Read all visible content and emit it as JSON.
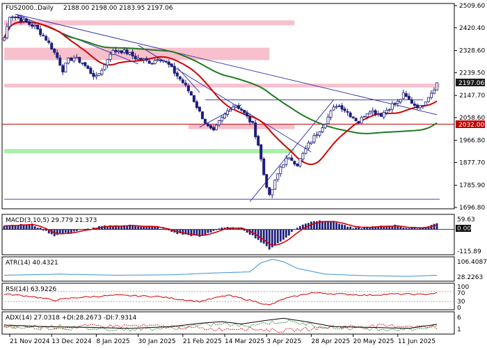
{
  "main": {
    "symbol_label": "FUS2000..Daily",
    "ohlc_text": "2188.00 2198.00 2183.95 2197.06",
    "price_ticks": [
      "2509.60",
      "2420.40",
      "2328.60",
      "2239.50",
      "2147.70",
      "2058.60",
      "1966.80",
      "1877.70",
      "1785.90",
      "1696.80"
    ],
    "current_price": "2197.06",
    "level_label": "2032.00",
    "colors": {
      "up": "#1f1f7a",
      "down": "#1f1f7a",
      "ma_fast": "#d40000",
      "ma_slow": "#1e7a1e",
      "zone_pink": "#f8c0cc",
      "zone_green": "#a8f0a8",
      "trend": "#2a2aa8",
      "level": "#c00000",
      "price_box": "#1a1a1a"
    }
  },
  "indicators": {
    "macd": {
      "label": "MACD(3,10,5) 29.779 21.373",
      "ticks": [
        "59.63",
        "0.00",
        "-115.89"
      ]
    },
    "atr": {
      "label": "ATR(14) 40.4321",
      "ticks": [
        "106.4087",
        "28.2263"
      ]
    },
    "rsi": {
      "label": "RSI(14) 63.9226",
      "ticks": [
        "100",
        "70",
        "30",
        "0"
      ]
    },
    "adx": {
      "label": "ADX(14) 27.0318 +DI:28.2673 -DI:7.9314",
      "ticks": [
        "6",
        "1"
      ]
    }
  },
  "x_axis": {
    "labels": [
      "21 Nov 2024",
      "13 Dec 2024",
      "8 Jan 2025",
      "30 Jan 2025",
      "21 Feb 2025",
      "14 Mar 2025",
      "3 Apr 2025",
      "28 Apr 2025",
      "20 May 2025",
      "11 Jun 2025"
    ]
  },
  "chart_data": {
    "type": "candlestick",
    "y_range": [
      1696.8,
      2509.6
    ],
    "closes_keypoints": [
      [
        0,
        2380
      ],
      [
        2,
        2470
      ],
      [
        5,
        2460
      ],
      [
        8,
        2440
      ],
      [
        11,
        2425
      ],
      [
        13,
        2400
      ],
      [
        15,
        2375
      ],
      [
        17,
        2340
      ],
      [
        19,
        2300
      ],
      [
        21,
        2250
      ],
      [
        23,
        2290
      ],
      [
        25,
        2300
      ],
      [
        28,
        2280
      ],
      [
        31,
        2240
      ],
      [
        33,
        2220
      ],
      [
        36,
        2270
      ],
      [
        38,
        2320
      ],
      [
        41,
        2330
      ],
      [
        44,
        2320
      ],
      [
        47,
        2300
      ],
      [
        50,
        2290
      ],
      [
        53,
        2280
      ],
      [
        55,
        2300
      ],
      [
        57,
        2290
      ],
      [
        59,
        2270
      ],
      [
        61,
        2240
      ],
      [
        64,
        2200
      ],
      [
        67,
        2150
      ],
      [
        70,
        2080
      ],
      [
        73,
        2020
      ],
      [
        75,
        2000
      ],
      [
        77,
        2040
      ],
      [
        79,
        2070
      ],
      [
        81,
        2100
      ],
      [
        83,
        2110
      ],
      [
        85,
        2090
      ],
      [
        87,
        2060
      ],
      [
        89,
        2030
      ],
      [
        91,
        1950
      ],
      [
        93,
        1830
      ],
      [
        95,
        1740
      ],
      [
        97,
        1800
      ],
      [
        99,
        1860
      ],
      [
        101,
        1890
      ],
      [
        103,
        1890
      ],
      [
        105,
        1870
      ],
      [
        107,
        1910
      ],
      [
        109,
        1950
      ],
      [
        111,
        1980
      ],
      [
        113,
        2010
      ],
      [
        115,
        2040
      ],
      [
        117,
        2080
      ],
      [
        119,
        2110
      ],
      [
        121,
        2100
      ],
      [
        123,
        2080
      ],
      [
        125,
        2060
      ],
      [
        127,
        2040
      ],
      [
        129,
        2070
      ],
      [
        131,
        2090
      ],
      [
        133,
        2080
      ],
      [
        135,
        2070
      ],
      [
        137,
        2090
      ],
      [
        139,
        2110
      ],
      [
        141,
        2120
      ],
      [
        143,
        2150
      ],
      [
        145,
        2130
      ],
      [
        147,
        2110
      ],
      [
        149,
        2100
      ],
      [
        151,
        2130
      ],
      [
        153,
        2160
      ],
      [
        155,
        2197
      ]
    ],
    "levels": [
      {
        "value": 2032.0
      }
    ],
    "zones": [
      {
        "x0": 0,
        "x1": 104,
        "y0": 2430,
        "y1": 2450,
        "color": "pink"
      },
      {
        "x0": 0,
        "x1": 95,
        "y0": 2290,
        "y1": 2340,
        "color": "pink"
      },
      {
        "x0": 0,
        "x1": 156,
        "y0": 2180,
        "y1": 2195,
        "color": "pink"
      },
      {
        "x0": 0,
        "x1": 104,
        "y0": 1915,
        "y1": 1932,
        "color": "green"
      },
      {
        "x0": 66,
        "x1": 104,
        "y0": 2012,
        "y1": 2030,
        "color": "pink"
      }
    ],
    "trendlines": [
      [
        [
          4,
          2475
        ],
        [
          48,
          2275
        ]
      ],
      [
        [
          4,
          2475
        ],
        [
          155,
          2070
        ]
      ],
      [
        [
          48,
          2350
        ],
        [
          110,
          1920
        ]
      ],
      [
        [
          62,
          2260
        ],
        [
          70,
          2160
        ]
      ],
      [
        [
          70,
          2020
        ],
        [
          85,
          2110
        ]
      ],
      [
        [
          88,
          1720
        ],
        [
          118,
          2130
        ]
      ],
      [
        [
          72,
          2130
        ],
        [
          150,
          2130
        ]
      ],
      [
        [
          0,
          1730
        ],
        [
          156,
          1730
        ]
      ]
    ],
    "macd_keypoints": [
      [
        0,
        20
      ],
      [
        10,
        25
      ],
      [
        18,
        -30
      ],
      [
        25,
        -10
      ],
      [
        35,
        15
      ],
      [
        45,
        20
      ],
      [
        55,
        10
      ],
      [
        62,
        -20
      ],
      [
        70,
        -35
      ],
      [
        78,
        10
      ],
      [
        85,
        5
      ],
      [
        90,
        -40
      ],
      [
        95,
        -95
      ],
      [
        100,
        -50
      ],
      [
        105,
        10
      ],
      [
        110,
        40
      ],
      [
        115,
        45
      ],
      [
        120,
        30
      ],
      [
        125,
        5
      ],
      [
        130,
        10
      ],
      [
        135,
        15
      ],
      [
        140,
        20
      ],
      [
        145,
        5
      ],
      [
        150,
        10
      ],
      [
        155,
        30
      ]
    ],
    "atr_keypoints": [
      [
        0,
        40
      ],
      [
        20,
        45
      ],
      [
        40,
        40
      ],
      [
        60,
        42
      ],
      [
        75,
        50
      ],
      [
        88,
        55
      ],
      [
        92,
        95
      ],
      [
        96,
        110
      ],
      [
        100,
        100
      ],
      [
        105,
        70
      ],
      [
        115,
        45
      ],
      [
        130,
        38
      ],
      [
        145,
        35
      ],
      [
        155,
        40
      ]
    ],
    "rsi_keypoints": [
      [
        0,
        60
      ],
      [
        10,
        50
      ],
      [
        18,
        35
      ],
      [
        25,
        45
      ],
      [
        40,
        55
      ],
      [
        55,
        50
      ],
      [
        62,
        40
      ],
      [
        70,
        30
      ],
      [
        80,
        55
      ],
      [
        90,
        30
      ],
      [
        95,
        15
      ],
      [
        100,
        40
      ],
      [
        110,
        65
      ],
      [
        120,
        60
      ],
      [
        130,
        55
      ],
      [
        140,
        60
      ],
      [
        150,
        58
      ],
      [
        155,
        64
      ]
    ],
    "adx_keypoints": [
      [
        0,
        25
      ],
      [
        15,
        20
      ],
      [
        30,
        18
      ],
      [
        45,
        15
      ],
      [
        60,
        20
      ],
      [
        70,
        30
      ],
      [
        78,
        35
      ],
      [
        85,
        28
      ],
      [
        95,
        40
      ],
      [
        100,
        45
      ],
      [
        108,
        35
      ],
      [
        118,
        20
      ],
      [
        130,
        18
      ],
      [
        145,
        15
      ],
      [
        155,
        27
      ]
    ]
  }
}
